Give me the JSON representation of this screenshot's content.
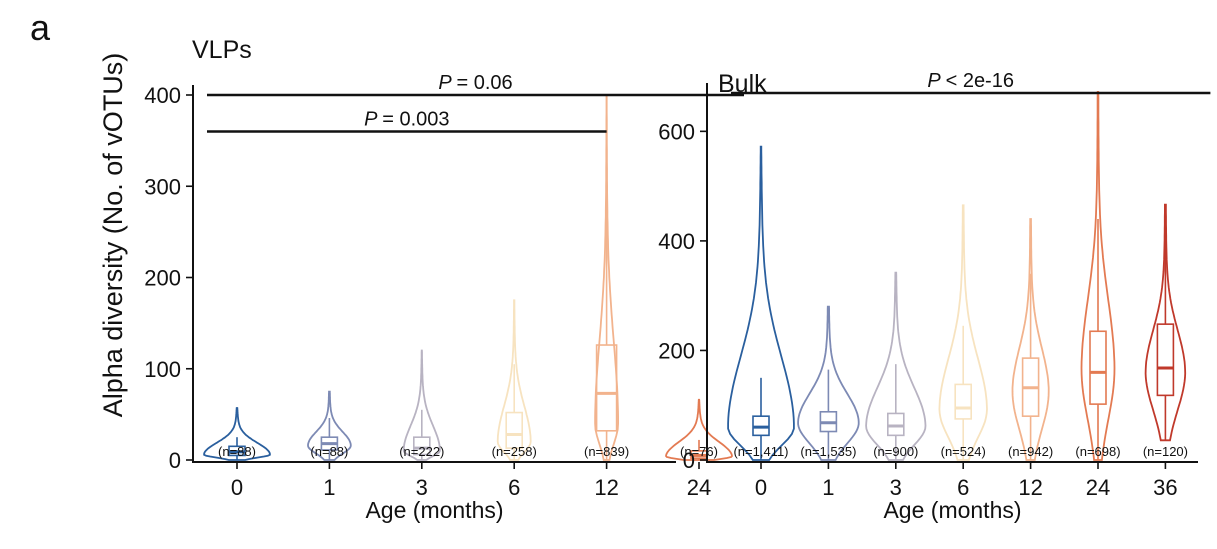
{
  "panel_label": "a",
  "y_axis_label": "Alpha diversity (No. of vOTUs)",
  "palette": [
    "#2a5f9e",
    "#7d8ab4",
    "#b8b3c2",
    "#f7e3c0",
    "#f2b38d",
    "#e37a52",
    "#c0392b"
  ],
  "chart_data": [
    {
      "type": "violin",
      "title": "VLPs",
      "xlabel": "Age (months)",
      "ylabel": "Alpha diversity (No. of vOTUs)",
      "ylim": [
        0,
        400
      ],
      "yticks": [
        0,
        100,
        200,
        300,
        400
      ],
      "categories": [
        "0",
        "1",
        "3",
        "6",
        "12",
        "24"
      ],
      "n_labels": [
        "(n=88)",
        "(n=88)",
        "(n=222)",
        "(n=258)",
        "(n=839)",
        "(n=76)"
      ],
      "colors": [
        "#2a5f9e",
        "#7d8ab4",
        "#b8b3c2",
        "#f7e3c0",
        "#f2b38d",
        "#e37a52"
      ],
      "groups": [
        {
          "min": 0,
          "q1": 5,
          "median": 9,
          "q3": 15,
          "max": 57,
          "upper_whisker": 25,
          "peak": 6,
          "width": 1.0
        },
        {
          "min": 0,
          "q1": 11,
          "median": 18,
          "q3": 25,
          "max": 75,
          "upper_whisker": 46,
          "peak": 16,
          "width": 0.65
        },
        {
          "min": 0,
          "q1": 6,
          "median": 13,
          "q3": 25,
          "max": 120,
          "upper_whisker": 55,
          "peak": 10,
          "width": 0.55
        },
        {
          "min": 0,
          "q1": 13,
          "median": 28,
          "q3": 52,
          "max": 175,
          "upper_whisker": 105,
          "peak": 20,
          "width": 0.5
        },
        {
          "min": 0,
          "q1": 32,
          "median": 73,
          "q3": 126,
          "max": 400,
          "upper_whisker": 265,
          "peak": 40,
          "width": 0.35
        },
        {
          "min": 0,
          "q1": 2,
          "median": 5,
          "q3": 10,
          "max": 66,
          "upper_whisker": 22,
          "peak": 4,
          "width": 1.0
        }
      ],
      "annotations": [
        {
          "p_symbol": "P",
          "text": "= 0.06",
          "from": "0",
          "to": "24",
          "y": 400
        },
        {
          "p_symbol": "P",
          "text": "= 0.003",
          "from": "0",
          "to": "12",
          "y": 360
        }
      ]
    },
    {
      "type": "violin",
      "title": "Bulk",
      "xlabel": "Age (months)",
      "ylabel": "",
      "ylim": [
        0,
        670
      ],
      "yticks": [
        0,
        200,
        400,
        600
      ],
      "categories": [
        "0",
        "1",
        "3",
        "6",
        "12",
        "24",
        "36"
      ],
      "n_labels": [
        "(n=1,411)",
        "(n=1,535)",
        "(n=900)",
        "(n=524)",
        "(n=942)",
        "(n=698)",
        "(n=120)"
      ],
      "colors": [
        "#2a5f9e",
        "#7d8ab4",
        "#b8b3c2",
        "#f7e3c0",
        "#f2b38d",
        "#e37a52",
        "#c0392b"
      ],
      "groups": [
        {
          "min": 0,
          "q1": 45,
          "median": 60,
          "q3": 80,
          "max": 572,
          "upper_whisker": 150,
          "peak": 60,
          "width": 1.0
        },
        {
          "min": 0,
          "q1": 52,
          "median": 68,
          "q3": 88,
          "max": 280,
          "upper_whisker": 165,
          "peak": 68,
          "width": 0.92
        },
        {
          "min": 0,
          "q1": 45,
          "median": 62,
          "q3": 85,
          "max": 342,
          "upper_whisker": 175,
          "peak": 62,
          "width": 0.9
        },
        {
          "min": 0,
          "q1": 75,
          "median": 95,
          "q3": 138,
          "max": 465,
          "upper_whisker": 245,
          "peak": 92,
          "width": 0.72
        },
        {
          "min": 0,
          "q1": 80,
          "median": 132,
          "q3": 186,
          "max": 440,
          "upper_whisker": 340,
          "peak": 125,
          "width": 0.55
        },
        {
          "min": 0,
          "q1": 102,
          "median": 160,
          "q3": 235,
          "max": 672,
          "upper_whisker": 440,
          "peak": 165,
          "width": 0.5
        },
        {
          "min": 36,
          "q1": 118,
          "median": 168,
          "q3": 248,
          "max": 466,
          "upper_whisker": 440,
          "peak": 160,
          "width": 0.6
        }
      ],
      "annotations": [
        {
          "p_symbol": "P",
          "text": "< 2e-16",
          "from": "0",
          "to": "36",
          "y": 670
        }
      ]
    }
  ]
}
